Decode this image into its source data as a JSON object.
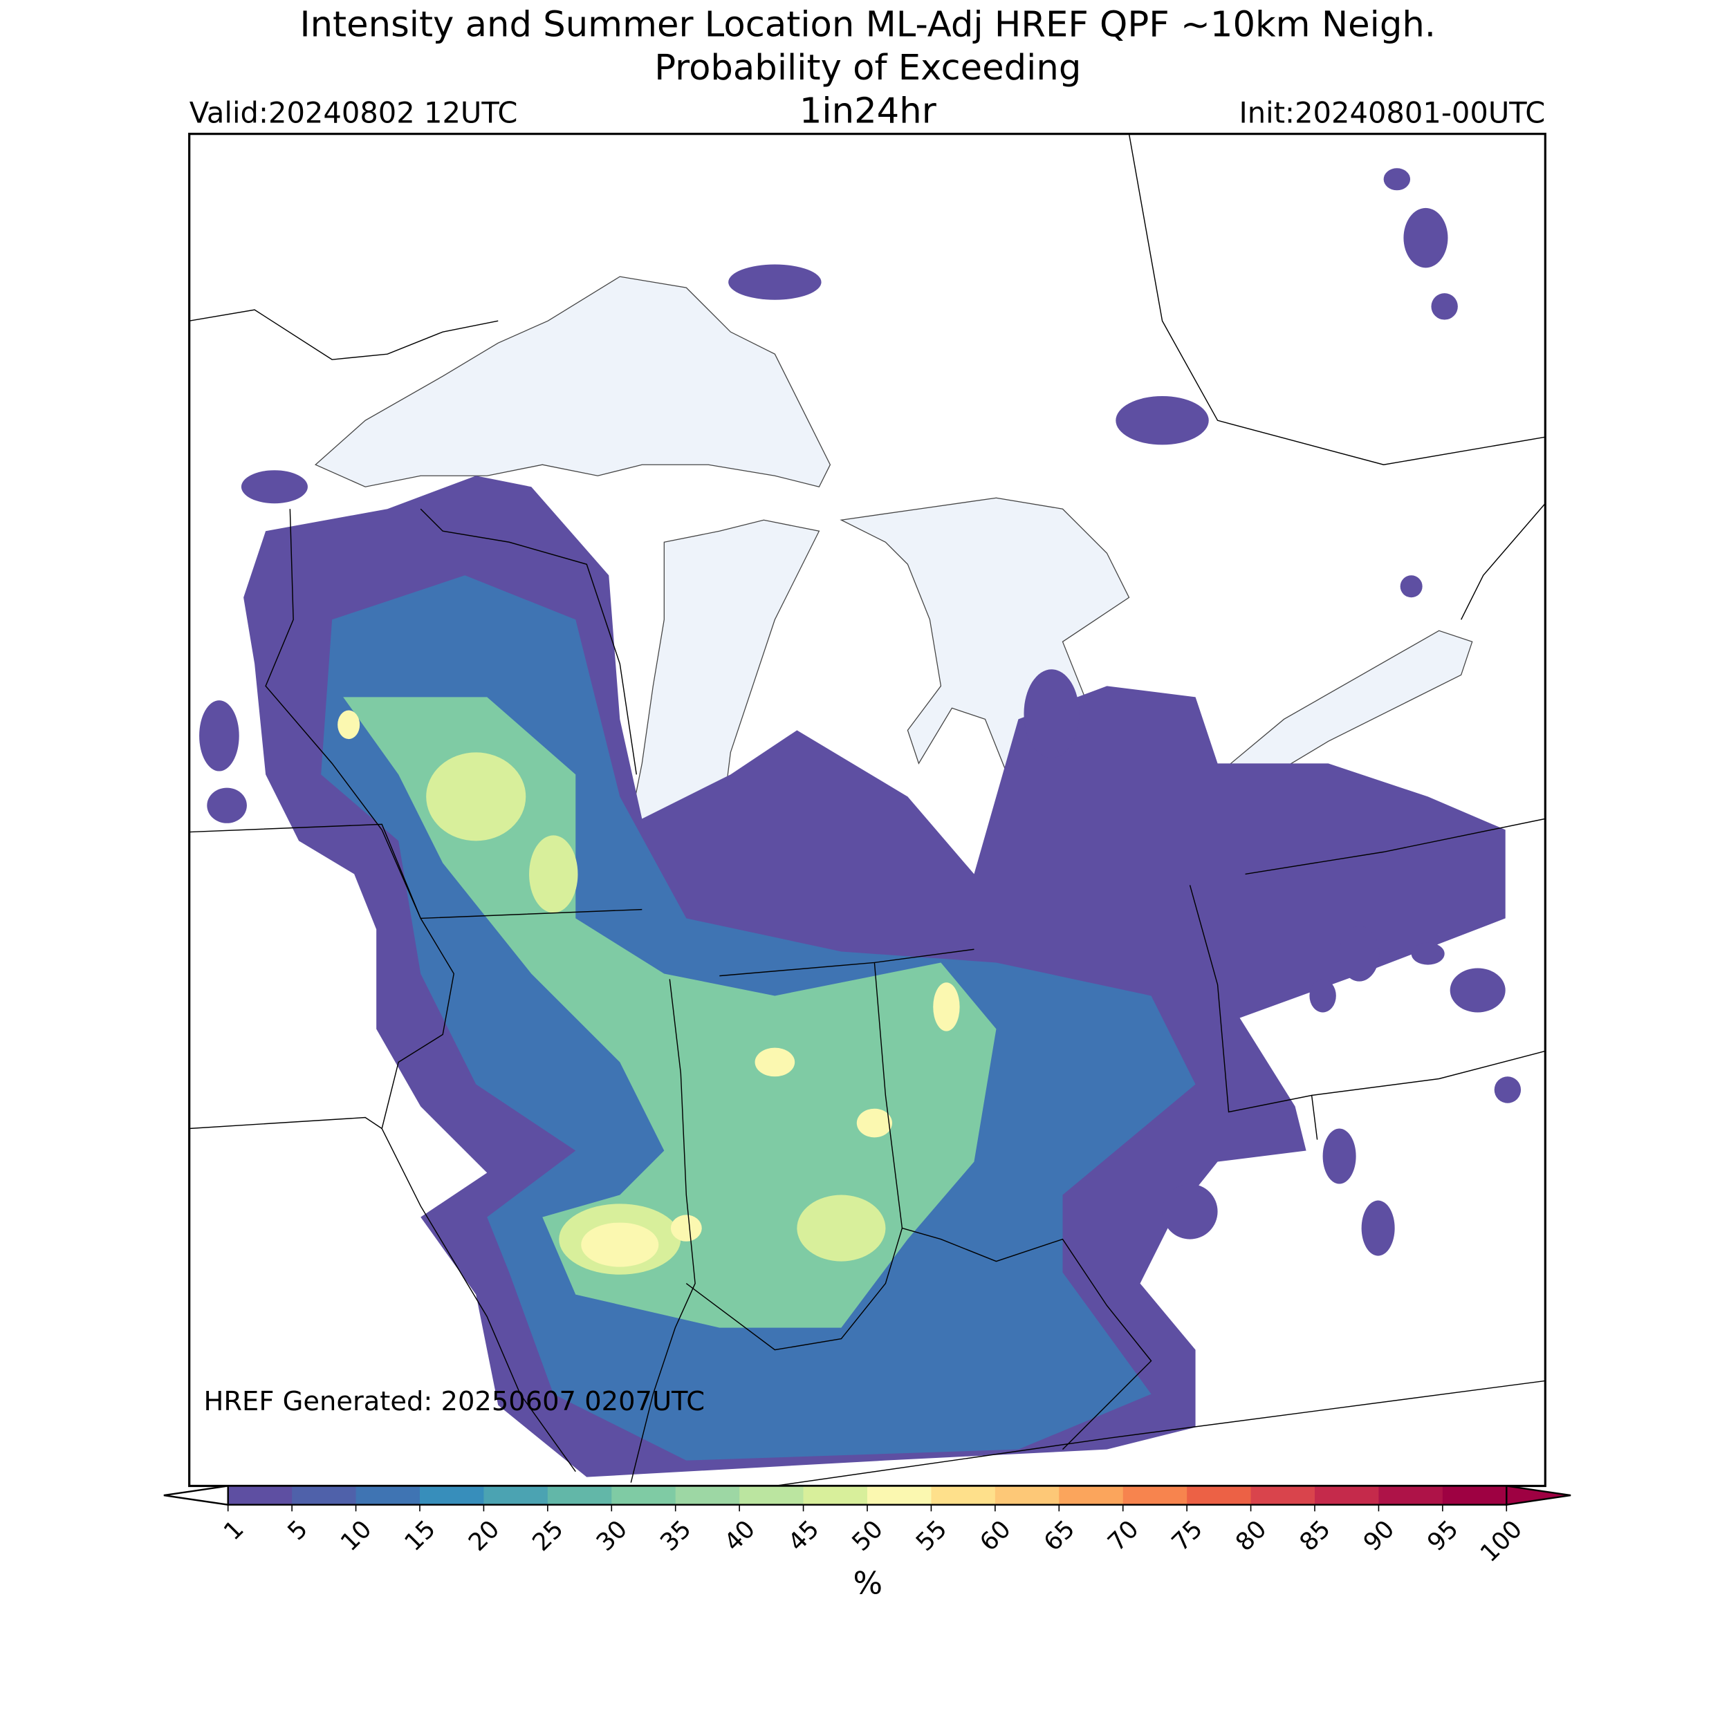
{
  "title": "Intensity and Summer Location ML-Adj HREF QPF ~10km Neigh.",
  "subtitle": "Probability of Exceeding",
  "valid": "Valid:20240802 12UTC",
  "period": "1in24hr",
  "init": "Init:20240801-00UTC",
  "generated": "HREF Generated: 20250607 0207UTC",
  "colorbar": {
    "ticks": [
      1,
      5,
      10,
      15,
      20,
      25,
      30,
      35,
      40,
      45,
      50,
      55,
      60,
      65,
      70,
      75,
      80,
      85,
      90,
      95,
      100
    ],
    "colors": [
      "#5e4fa2",
      "#4f61aa",
      "#3f74b3",
      "#378ebb",
      "#4ba3b2",
      "#62b7a8",
      "#7fcba4",
      "#9dd7a4",
      "#bbe5a0",
      "#d8ef9b",
      "#fbf8b0",
      "#fee08b",
      "#fdc877",
      "#fba55c",
      "#f7844e",
      "#ec6145",
      "#d9444c",
      "#c52a4b",
      "#ae1348",
      "#9e0142"
    ],
    "under_color": "#ffffff",
    "over_color": "#9e0142",
    "label": "%"
  }
}
